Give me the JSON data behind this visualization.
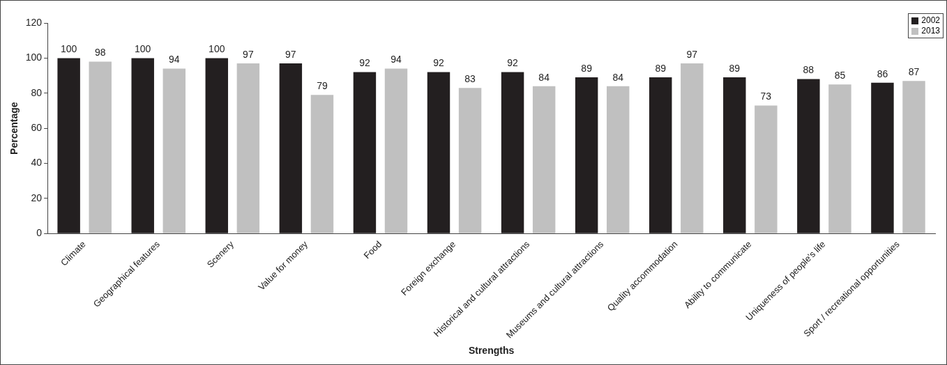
{
  "chart_data": {
    "type": "bar",
    "xlabel": "Strengths",
    "ylabel": "Percentage",
    "categories": [
      "Climate",
      "Geographical features",
      "Scenery",
      "Value for money",
      "Food",
      "Foreign exchange",
      "Historical and cultural attractions",
      "Museums and cultural attractions",
      "Quality accommodation",
      "Ability to communicate",
      "Uniqueness of people's life",
      "Sport / recreational opportunities"
    ],
    "series": [
      {
        "name": "2002",
        "color": "#231f20",
        "values": [
          100,
          100,
          100,
          97,
          92,
          92,
          92,
          89,
          89,
          89,
          88,
          86
        ]
      },
      {
        "name": "2013",
        "color": "#c0c0c0",
        "values": [
          98,
          94,
          97,
          79,
          94,
          83,
          84,
          84,
          97,
          73,
          85,
          87
        ]
      }
    ],
    "ylim": [
      0,
      120
    ],
    "yticks": [
      0,
      20,
      40,
      60,
      80,
      100,
      120
    ],
    "grid": false,
    "legend": "top right",
    "data_labels": true
  }
}
